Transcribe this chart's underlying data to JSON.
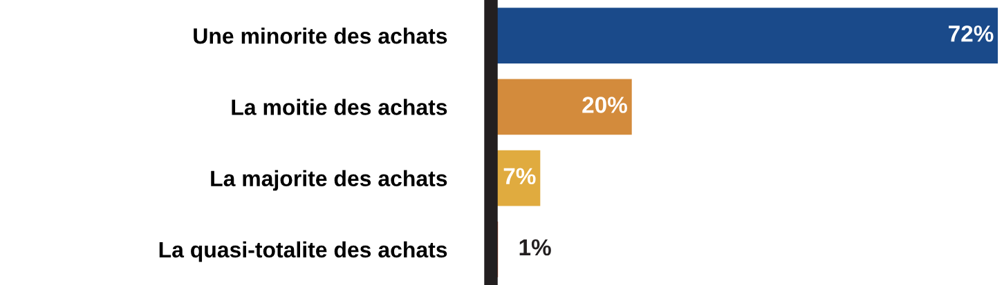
{
  "chart_data": {
    "type": "bar",
    "orientation": "horizontal",
    "categories": [
      "Une minorite des achats",
      "La moitie des achats",
      "La majorite des achats",
      "La quasi-totalite des achats"
    ],
    "values": [
      72,
      20,
      7,
      1
    ],
    "colors": [
      "#1a4a8a",
      "#d38b3c",
      "#e0ab3f",
      "#c9553a"
    ],
    "value_labels": [
      "72%",
      "20%",
      "7%",
      "1%"
    ],
    "grid": false,
    "legend": false
  }
}
